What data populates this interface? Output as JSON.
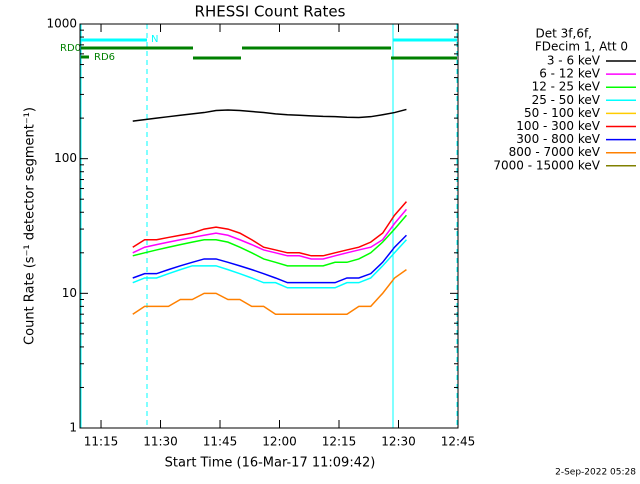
{
  "chart_data": {
    "type": "line",
    "title": "RHESSI Count Rates",
    "x_label": "Start Time (16-Mar-17 11:09:42)",
    "y_label": "Count Rate (s⁻¹ detector segment⁻¹)",
    "log_y": true,
    "xlim": [
      669.7,
      765
    ],
    "xticks": [
      {
        "value": 675,
        "label": "11:15"
      },
      {
        "value": 690,
        "label": "11:30"
      },
      {
        "value": 705,
        "label": "11:45"
      },
      {
        "value": 720,
        "label": "12:00"
      },
      {
        "value": 735,
        "label": "12:15"
      },
      {
        "value": 750,
        "label": "12:30"
      },
      {
        "value": 765,
        "label": "12:45"
      }
    ],
    "ylim": [
      1,
      1000
    ],
    "yticks": [
      1,
      10,
      100,
      1000
    ],
    "legend_header": [
      "Det 3f,6f,",
      "FDecim 1, Att 0"
    ],
    "flags": [
      "N",
      "RD0",
      "RD6"
    ],
    "timestamp": "2-Sep-2022 05:28",
    "x": [
      683,
      686,
      689,
      692,
      695,
      698,
      701,
      704,
      707,
      710,
      713,
      716,
      719,
      722,
      725,
      728,
      731,
      734,
      737,
      740,
      743,
      746,
      749,
      752
    ],
    "series": [
      {
        "name": "3 - 6 keV",
        "color": "#000000",
        "values": [
          190,
          195,
          200,
          205,
          210,
          215,
          220,
          228,
          230,
          228,
          224,
          220,
          215,
          212,
          210,
          208,
          206,
          205,
          203,
          202,
          205,
          212,
          220,
          232
        ]
      },
      {
        "name": "6 - 12 keV",
        "color": "#ff00ff",
        "values": [
          20,
          22,
          23,
          24,
          25,
          26,
          27,
          28,
          27,
          25,
          23,
          21,
          20,
          19,
          19,
          18,
          18,
          19,
          20,
          21,
          22,
          25,
          33,
          42
        ]
      },
      {
        "name": "12 - 25 keV",
        "color": "#00ff00",
        "values": [
          19,
          20,
          21,
          22,
          23,
          24,
          25,
          25,
          24,
          22,
          20,
          18,
          17,
          16,
          16,
          16,
          16,
          17,
          17,
          18,
          20,
          24,
          30,
          38
        ]
      },
      {
        "name": "25 - 50 keV",
        "color": "#00ffff",
        "values": [
          12,
          13,
          13,
          14,
          15,
          16,
          16,
          16,
          15,
          14,
          13,
          12,
          12,
          11,
          11,
          11,
          11,
          11,
          12,
          12,
          13,
          16,
          20,
          25
        ]
      },
      {
        "name": "50 - 100 keV",
        "color": "#ffcc00",
        "values": [
          null,
          null,
          null,
          null,
          null,
          null,
          null,
          null,
          null,
          null,
          null,
          null,
          null,
          null,
          null,
          null,
          null,
          null,
          null,
          null,
          null,
          null,
          null,
          null
        ]
      },
      {
        "name": "100 - 300 keV",
        "color": "#ff0000",
        "values": [
          22,
          25,
          25,
          26,
          27,
          28,
          30,
          31,
          30,
          28,
          25,
          22,
          21,
          20,
          20,
          19,
          19,
          20,
          21,
          22,
          24,
          28,
          38,
          48
        ]
      },
      {
        "name": "300 - 800 keV",
        "color": "#0000ff",
        "values": [
          13,
          14,
          14,
          15,
          16,
          17,
          18,
          18,
          17,
          16,
          15,
          14,
          13,
          12,
          12,
          12,
          12,
          12,
          13,
          13,
          14,
          17,
          22,
          27
        ]
      },
      {
        "name": "800 - 7000 keV",
        "color": "#ff8000",
        "values": [
          7,
          8,
          8,
          8,
          9,
          9,
          10,
          10,
          9,
          9,
          8,
          8,
          7,
          7,
          7,
          7,
          7,
          7,
          7,
          8,
          8,
          10,
          13,
          15
        ]
      },
      {
        "name": "7000 - 15000 keV",
        "color": "#808000",
        "values": [
          null,
          null,
          null,
          null,
          null,
          null,
          null,
          null,
          null,
          null,
          null,
          null,
          null,
          null,
          null,
          null,
          null,
          null,
          null,
          null,
          null,
          null,
          null,
          null
        ]
      }
    ]
  }
}
